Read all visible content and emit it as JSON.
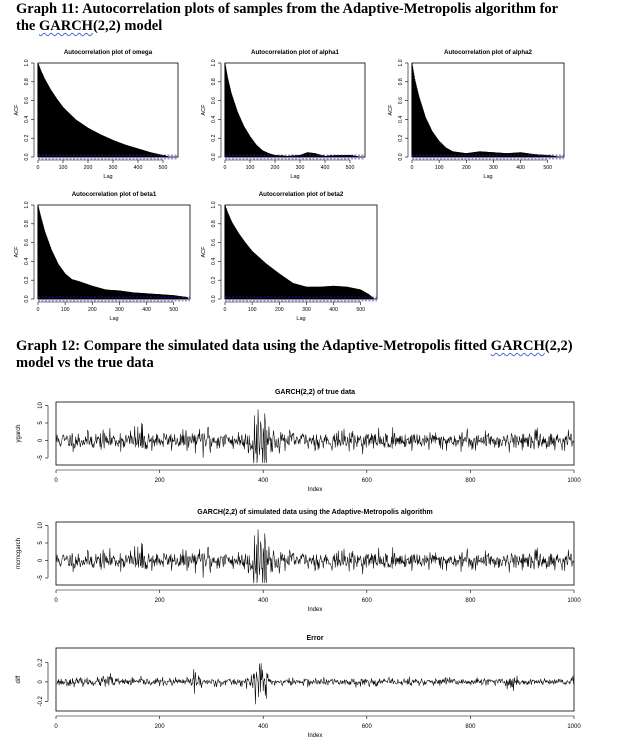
{
  "graph11": {
    "heading_line1": "Graph 11: Autocorrelation plots of samples from the Adaptive-Metropolis algorithm for",
    "heading_line2_pre": "the ",
    "heading_line2_word": "GARCH",
    "heading_line2_post": "(2,2) model"
  },
  "graph12": {
    "heading_line1_pre": "Graph 12: Compare the simulated data using the Adaptive-Metropolis fitted ",
    "heading_line1_word": "GARCH",
    "heading_line1_post": "(2,2)",
    "heading_line2": "model vs the true data"
  },
  "chart_data": [
    {
      "type": "area",
      "title": "Autocorrelation plot of omega",
      "xlabel": "Lag",
      "ylabel": "ACF",
      "xlim": [
        0,
        560
      ],
      "ylim": [
        0,
        1
      ],
      "xticks": [
        0,
        100,
        200,
        300,
        400,
        500
      ],
      "yticks": [
        0.0,
        0.2,
        0.4,
        0.6,
        0.8,
        1.0
      ],
      "x": [
        0,
        10,
        25,
        50,
        75,
        100,
        150,
        200,
        250,
        300,
        350,
        400,
        450,
        500,
        530,
        550
      ],
      "values": [
        1.0,
        0.93,
        0.84,
        0.72,
        0.62,
        0.53,
        0.4,
        0.31,
        0.24,
        0.18,
        0.13,
        0.09,
        0.05,
        0.02,
        0.0,
        0.0
      ]
    },
    {
      "type": "area",
      "title": "Autocorrelation plot of alpha1",
      "xlabel": "Lag",
      "ylabel": "ACF",
      "xlim": [
        0,
        560
      ],
      "ylim": [
        0,
        1
      ],
      "xticks": [
        0,
        100,
        200,
        300,
        400,
        500
      ],
      "yticks": [
        0.0,
        0.2,
        0.4,
        0.6,
        0.8,
        1.0
      ],
      "x": [
        0,
        10,
        25,
        50,
        75,
        100,
        125,
        150,
        175,
        200,
        250,
        300,
        330,
        360,
        400,
        450,
        500,
        550
      ],
      "values": [
        1.0,
        0.85,
        0.68,
        0.48,
        0.33,
        0.22,
        0.13,
        0.07,
        0.04,
        0.02,
        0.01,
        0.02,
        0.05,
        0.04,
        0.01,
        0.02,
        0.02,
        0.0
      ]
    },
    {
      "type": "area",
      "title": "Autocorrelation plot of alpha2",
      "xlabel": "Lag",
      "ylabel": "ACF",
      "xlim": [
        0,
        560
      ],
      "ylim": [
        0,
        1
      ],
      "xticks": [
        0,
        100,
        200,
        300,
        400,
        500
      ],
      "yticks": [
        0.0,
        0.2,
        0.4,
        0.6,
        0.8,
        1.0
      ],
      "x": [
        0,
        10,
        25,
        50,
        75,
        100,
        125,
        150,
        200,
        250,
        300,
        350,
        400,
        450,
        500,
        550
      ],
      "values": [
        1.0,
        0.83,
        0.65,
        0.42,
        0.27,
        0.17,
        0.1,
        0.06,
        0.04,
        0.06,
        0.05,
        0.04,
        0.05,
        0.03,
        0.02,
        0.0
      ]
    },
    {
      "type": "area",
      "title": "Autocorrelation plot of beta1",
      "xlabel": "Lag",
      "ylabel": "ACF",
      "xlim": [
        0,
        560
      ],
      "ylim": [
        0,
        1
      ],
      "xticks": [
        0,
        100,
        200,
        300,
        400,
        500
      ],
      "yticks": [
        0.0,
        0.2,
        0.4,
        0.6,
        0.8,
        1.0
      ],
      "x": [
        0,
        10,
        25,
        50,
        75,
        100,
        125,
        150,
        200,
        250,
        300,
        350,
        400,
        450,
        500,
        550
      ],
      "values": [
        1.0,
        0.88,
        0.72,
        0.52,
        0.37,
        0.27,
        0.21,
        0.19,
        0.14,
        0.1,
        0.09,
        0.07,
        0.06,
        0.05,
        0.04,
        0.02
      ]
    },
    {
      "type": "area",
      "title": "Autocorrelation plot of beta2",
      "xlabel": "Lag",
      "ylabel": "ACF",
      "xlim": [
        0,
        560
      ],
      "ylim": [
        0,
        1
      ],
      "xticks": [
        0,
        100,
        200,
        300,
        400,
        500
      ],
      "yticks": [
        0.0,
        0.2,
        0.4,
        0.6,
        0.8,
        1.0
      ],
      "x": [
        0,
        10,
        25,
        50,
        75,
        100,
        150,
        200,
        250,
        300,
        350,
        400,
        450,
        500,
        530,
        550
      ],
      "values": [
        1.0,
        0.92,
        0.82,
        0.7,
        0.6,
        0.51,
        0.38,
        0.27,
        0.17,
        0.13,
        0.13,
        0.14,
        0.13,
        0.1,
        0.05,
        0.0
      ]
    },
    {
      "type": "line",
      "title": "GARCH(2,2) of true data",
      "xlabel": "Index",
      "ylabel": "ygarch",
      "xlim": [
        0,
        1000
      ],
      "ylim": [
        -7,
        11
      ],
      "xticks": [
        0,
        200,
        400,
        600,
        800,
        1000
      ],
      "yticks": [
        -5,
        0,
        5,
        10
      ],
      "n": 1000,
      "base_sd": 1.3,
      "seed": 11,
      "bursts": [
        {
          "center": 395,
          "width": 18,
          "amplitude": 4.5
        },
        {
          "center": 290,
          "width": 10,
          "amplitude": 1.5
        },
        {
          "center": 160,
          "width": 12,
          "amplitude": 1.2
        }
      ]
    },
    {
      "type": "line",
      "title": "GARCH(2,2) of simulated data using the Adaptive-Metropolis algorithm",
      "xlabel": "Index",
      "ylabel": "mcmcgarch",
      "xlim": [
        0,
        1000
      ],
      "ylim": [
        -7,
        11
      ],
      "xticks": [
        0,
        200,
        400,
        600,
        800,
        1000
      ],
      "yticks": [
        -5,
        0,
        5,
        10
      ],
      "n": 1000,
      "base_sd": 1.3,
      "seed": 11,
      "bursts": [
        {
          "center": 395,
          "width": 18,
          "amplitude": 4.5
        },
        {
          "center": 290,
          "width": 10,
          "amplitude": 1.5
        },
        {
          "center": 160,
          "width": 12,
          "amplitude": 1.2
        }
      ]
    },
    {
      "type": "line",
      "title": "Error",
      "xlabel": "Index",
      "ylabel": "diff",
      "xlim": [
        0,
        1000
      ],
      "ylim": [
        -0.3,
        0.35
      ],
      "xticks": [
        0,
        200,
        400,
        600,
        800,
        1000
      ],
      "yticks": [
        -0.2,
        0.0,
        0.2
      ],
      "n": 1000,
      "base_sd": 0.02,
      "seed": 23,
      "bursts": [
        {
          "center": 395,
          "width": 15,
          "amplitude": 0.11
        },
        {
          "center": 270,
          "width": 8,
          "amplitude": 0.07
        },
        {
          "center": 100,
          "width": 10,
          "amplitude": 0.03
        },
        {
          "center": 880,
          "width": 10,
          "amplitude": 0.03
        }
      ]
    }
  ]
}
